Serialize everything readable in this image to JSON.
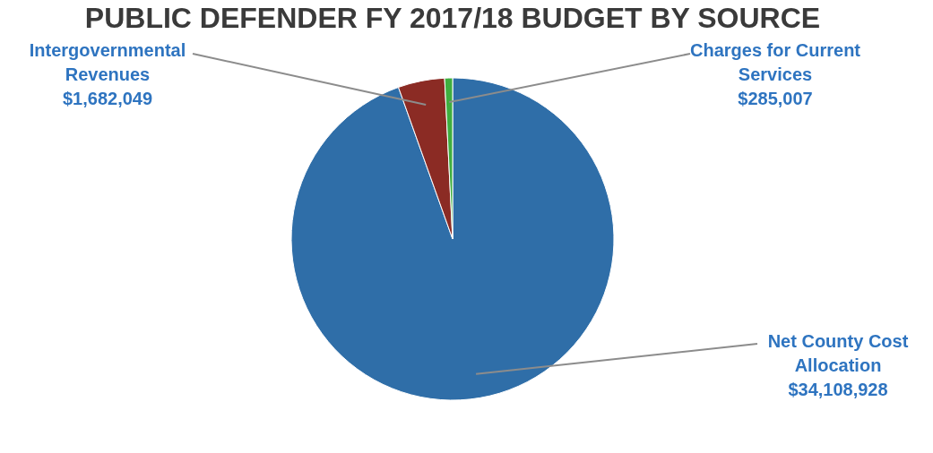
{
  "chart_data": {
    "type": "pie",
    "title": "PUBLIC DEFENDER FY 2017/18 BUDGET BY SOURCE",
    "categories": [
      "Net County Cost Allocation",
      "Intergovernmental Revenues",
      "Charges for Current Services"
    ],
    "values": [
      34108928,
      1682049,
      285007
    ],
    "value_labels": [
      "$34,108,928",
      "$1,682,049",
      "$285,007"
    ],
    "colors": [
      "#2f6ea8",
      "#8b2b24",
      "#3fae3f"
    ],
    "legend": false
  }
}
